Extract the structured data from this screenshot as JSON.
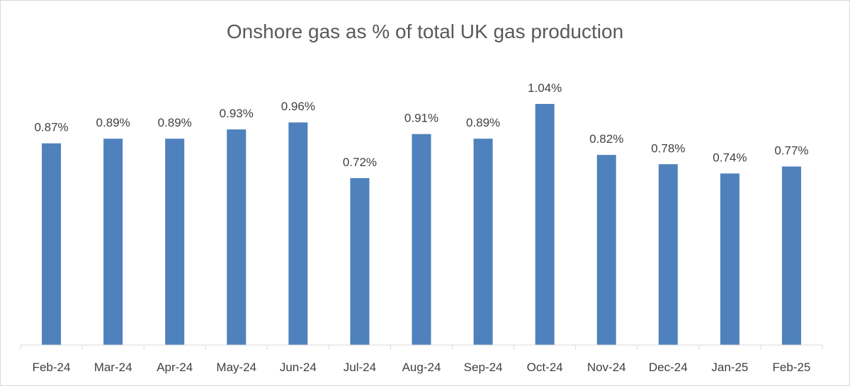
{
  "chart_data": {
    "type": "bar",
    "title": "Onshore gas as % of total UK gas production",
    "xlabel": "",
    "ylabel": "",
    "categories": [
      "Feb-24",
      "Mar-24",
      "Apr-24",
      "May-24",
      "Jun-24",
      "Jul-24",
      "Aug-24",
      "Sep-24",
      "Oct-24",
      "Nov-24",
      "Dec-24",
      "Jan-25",
      "Feb-25"
    ],
    "values": [
      0.87,
      0.89,
      0.89,
      0.93,
      0.96,
      0.72,
      0.91,
      0.89,
      1.04,
      0.82,
      0.78,
      0.74,
      0.77
    ],
    "data_labels": [
      "0.87%",
      "0.89%",
      "0.89%",
      "0.93%",
      "0.96%",
      "0.72%",
      "0.91%",
      "0.89%",
      "1.04%",
      "0.82%",
      "0.78%",
      "0.74%",
      "0.77%"
    ],
    "ylim": [
      0,
      1.04
    ],
    "grid": false,
    "legend": "none",
    "bar_color": "#4f81bd",
    "axis_color": "#d9d9d9",
    "text_color": "#404040",
    "title_color": "#595959"
  }
}
